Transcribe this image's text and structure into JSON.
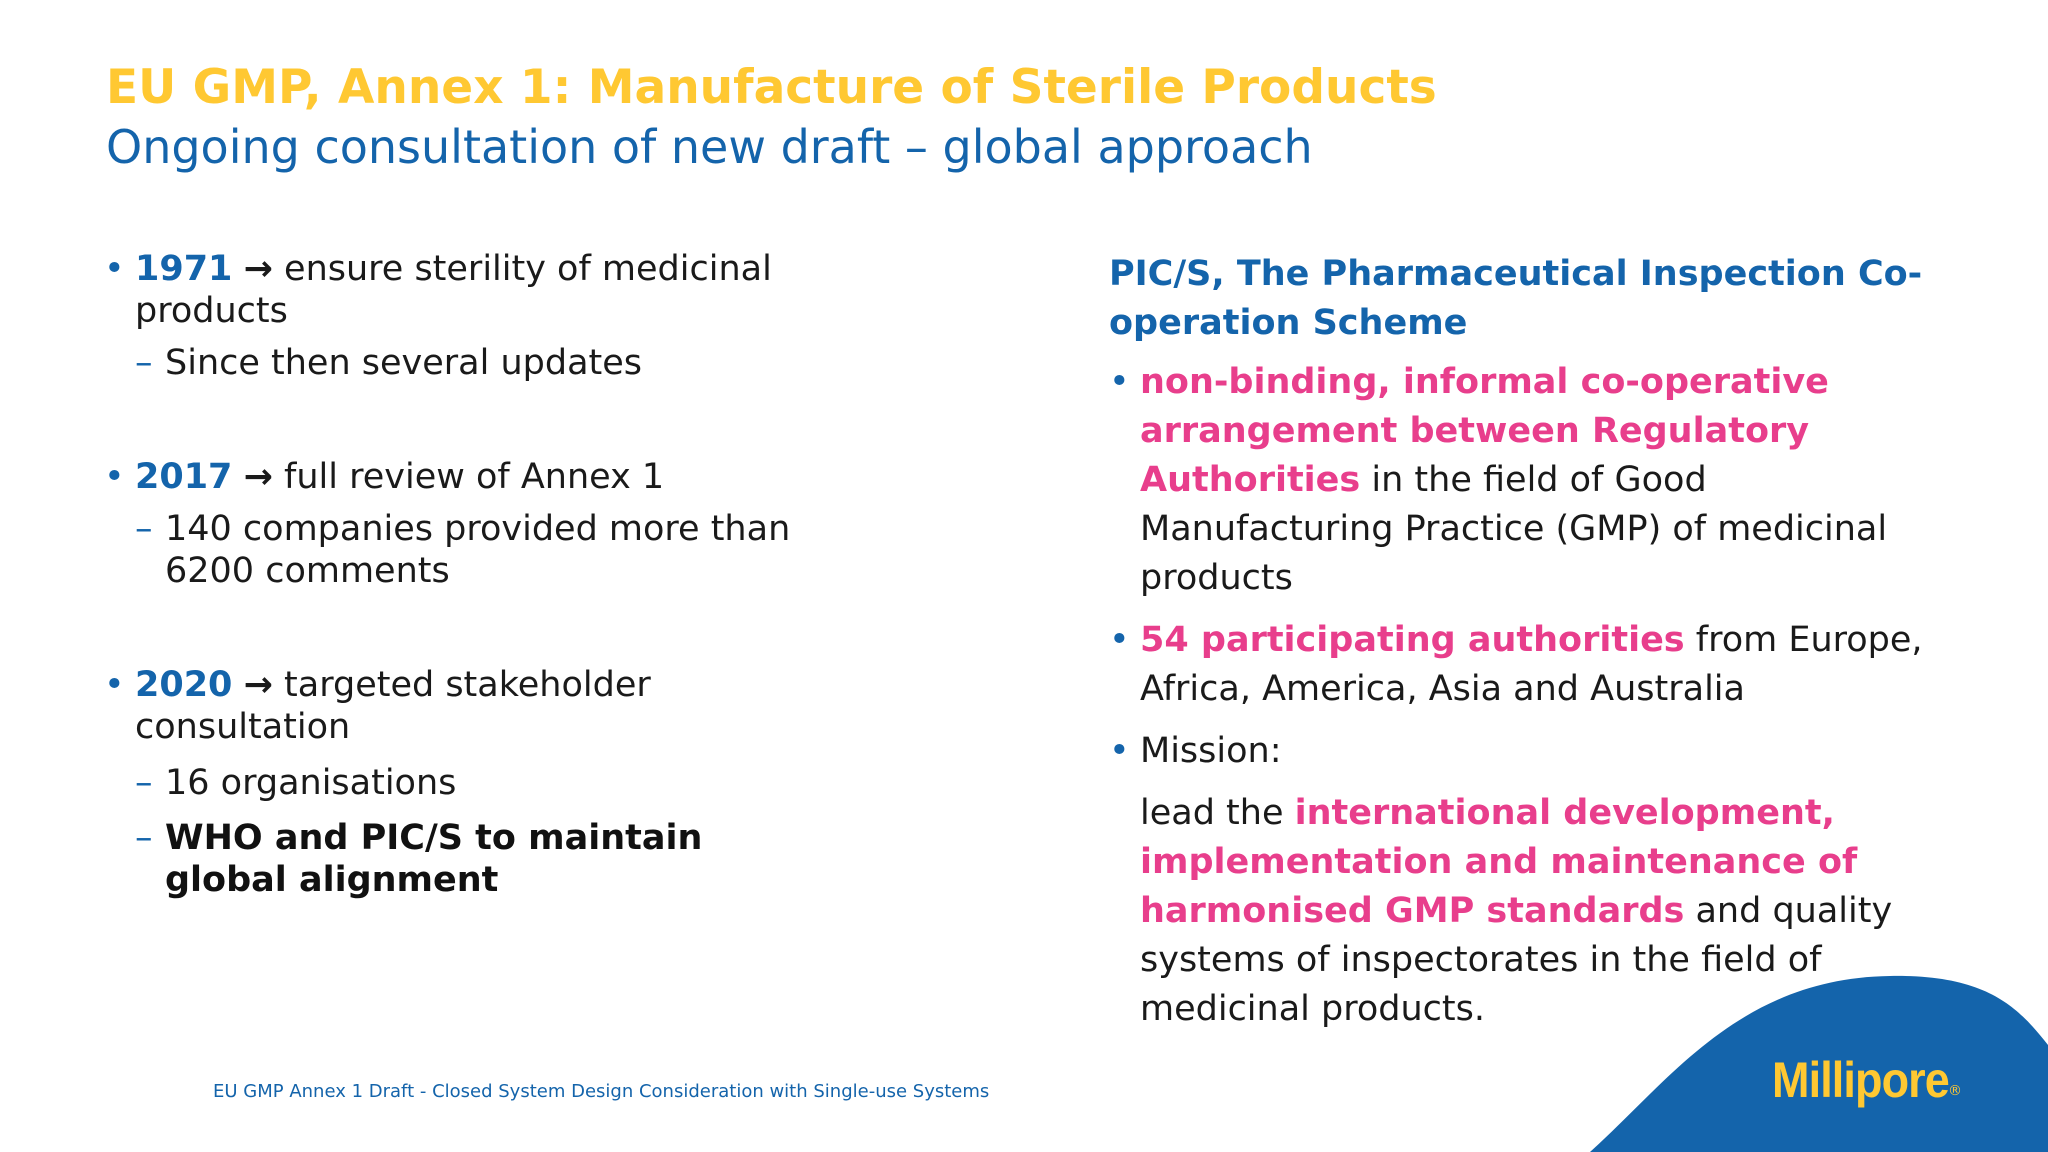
{
  "header": {
    "title": "EU GMP, Annex 1: Manufacture of Sterile Products",
    "subtitle": "Ongoing consultation of new draft – global approach"
  },
  "left": {
    "bullet_glyph": "•",
    "dash_glyph": "–",
    "arrow_glyph": "→",
    "items": [
      {
        "year": "1971",
        "text": "ensure sterility of medicinal products",
        "subitems": [
          "Since then several updates"
        ]
      },
      {
        "year": "2017",
        "text": "full review of Annex 1",
        "subitems": [
          "140 companies provided more than 6200 comments"
        ]
      },
      {
        "year": "2020",
        "text": "targeted stakeholder consultation",
        "subitems": [
          "16 organisations",
          "WHO and PIC/S to maintain global alignment"
        ]
      }
    ]
  },
  "right": {
    "heading": "PIC/S, The Pharmaceutical Inspection Co-operation Scheme",
    "bullet1": {
      "highlight": "non-binding, informal co-operative arrangement between Regulatory Authorities",
      "rest": " in the field of Good Manufacturing Practice (GMP) of medicinal products"
    },
    "bullet2": {
      "highlight": "54 participating authorities",
      "rest": " from Europe, Africa, America, Asia and Australia"
    },
    "bullet3": {
      "text": "Mission:"
    },
    "mission": {
      "pre": "lead the ",
      "highlight": "international development, implementation and maintenance of harmonised GMP standards",
      "post": " and quality systems of inspectorates in the field of medicinal products."
    }
  },
  "footer": {
    "text": "EU GMP Annex 1 Draft - Closed System Design Consideration with Single-use Systems"
  },
  "brand": {
    "name": "Millipore",
    "reg": "®",
    "color_primary": "#1464ab",
    "color_accent": "#ffc832",
    "color_highlight": "#e83e8c"
  }
}
